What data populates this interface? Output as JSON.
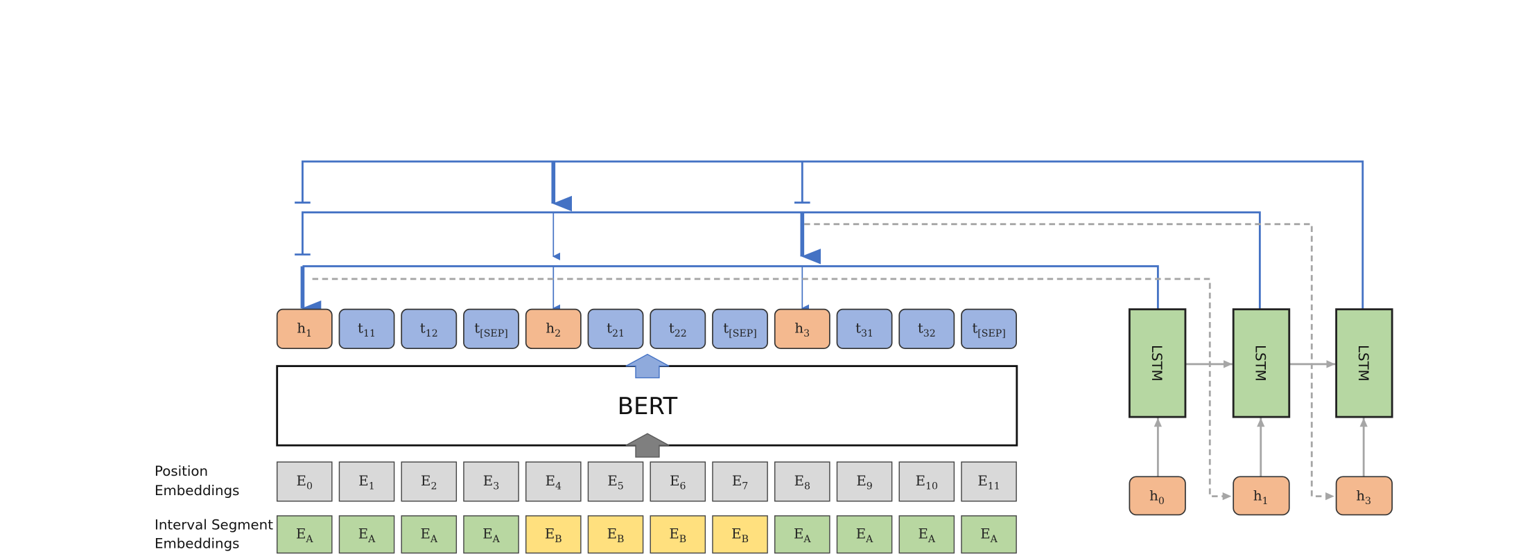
{
  "tokens": [
    {
      "base": "h",
      "sub": "1"
    },
    {
      "base": "t",
      "sub": "11"
    },
    {
      "base": "t",
      "sub": "12"
    },
    {
      "base": "t",
      "sub": "[SEP]"
    },
    {
      "base": "h",
      "sub": "2"
    },
    {
      "base": "t",
      "sub": "21"
    },
    {
      "base": "t",
      "sub": "22"
    },
    {
      "base": "t",
      "sub": "[SEP]"
    },
    {
      "base": "h",
      "sub": "3"
    },
    {
      "base": "t",
      "sub": "31"
    },
    {
      "base": "t",
      "sub": "32"
    },
    {
      "base": "t",
      "sub": "[SEP]"
    }
  ],
  "bert": "BERT",
  "position_label": [
    "Position",
    "Embeddings"
  ],
  "position_embeddings": [
    {
      "base": "E",
      "sub": "0"
    },
    {
      "base": "E",
      "sub": "1"
    },
    {
      "base": "E",
      "sub": "2"
    },
    {
      "base": "E",
      "sub": "3"
    },
    {
      "base": "E",
      "sub": "4"
    },
    {
      "base": "E",
      "sub": "5"
    },
    {
      "base": "E",
      "sub": "6"
    },
    {
      "base": "E",
      "sub": "7"
    },
    {
      "base": "E",
      "sub": "8"
    },
    {
      "base": "E",
      "sub": "9"
    },
    {
      "base": "E",
      "sub": "10"
    },
    {
      "base": "E",
      "sub": "11"
    }
  ],
  "segment_label": [
    "Interval Segment",
    "Embeddings"
  ],
  "segment_embeddings": [
    {
      "base": "E",
      "sub": "A"
    },
    {
      "base": "E",
      "sub": "A"
    },
    {
      "base": "E",
      "sub": "A"
    },
    {
      "base": "E",
      "sub": "A"
    },
    {
      "base": "E",
      "sub": "B"
    },
    {
      "base": "E",
      "sub": "B"
    },
    {
      "base": "E",
      "sub": "B"
    },
    {
      "base": "E",
      "sub": "B"
    },
    {
      "base": "E",
      "sub": "A"
    },
    {
      "base": "E",
      "sub": "A"
    },
    {
      "base": "E",
      "sub": "A"
    },
    {
      "base": "E",
      "sub": "A"
    }
  ],
  "lstm": [
    {
      "label": "LSTM",
      "input": {
        "base": "h",
        "sub": "0"
      }
    },
    {
      "label": "LSTM",
      "input": {
        "base": "h",
        "sub": "1"
      }
    },
    {
      "label": "LSTM",
      "input": {
        "base": "h",
        "sub": "3"
      }
    }
  ]
}
